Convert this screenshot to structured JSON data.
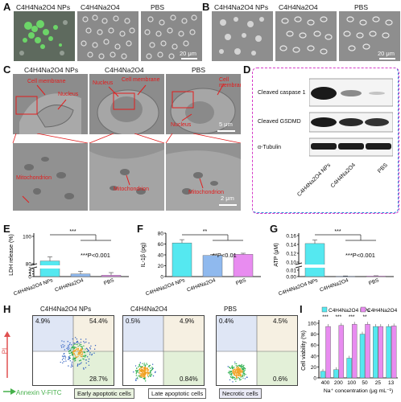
{
  "panel_labels": {
    "A": "A",
    "B": "B",
    "C": "C",
    "D": "D",
    "E": "E",
    "F": "F",
    "G": "G",
    "H": "H",
    "I": "I"
  },
  "micro_titles": {
    "A": [
      "C4H4Na2O4 NPs",
      "C4H4Na2O4",
      "PBS"
    ],
    "B": [
      "C4H4Na2O4 NPs",
      "C4H4Na2O4",
      "PBS"
    ]
  },
  "scale": {
    "A": "20 μm",
    "B": "20 μm",
    "C_top": "5 μm",
    "C_bottom": "2 μm"
  },
  "tem": {
    "titles": [
      "C4H4Na2O4 NPs",
      "C4H4Na2O4",
      "PBS"
    ],
    "labels_top": [
      [
        "Cell membrane",
        "Nucleus"
      ],
      [
        "Nucleus",
        "Cell membrane"
      ],
      [
        "Cell membrane",
        "Nucleus"
      ]
    ],
    "labels_bottom": [
      "Mitochondrion",
      "Mitochondrion",
      "Mitochondrion"
    ]
  },
  "western": {
    "rows": [
      "Cleaved caspase 1",
      "Cleaved GSDMD",
      "α-Tubulin"
    ],
    "lanes": [
      "C4H4Na2O4 NPs",
      "C4H4Na2O4",
      "PBS"
    ],
    "colors": {
      "frame": "#d63ac9",
      "frame2": "#2b88d8"
    }
  },
  "colors": {
    "cyan": "#55e8f0",
    "blue": "#8fb9ee",
    "magenta": "#e88cf0",
    "dark": "#222222"
  },
  "chart_data": [
    {
      "panel": "E",
      "type": "bar",
      "ylabel": "LDH release (%)",
      "categories": [
        "C4H4Na2O4 NPs",
        "C4H4Na2O4",
        "PBS"
      ],
      "values": [
        82,
        1,
        0.5
      ],
      "errors": [
        3,
        1,
        1
      ],
      "yticks": [
        0,
        1,
        2,
        3,
        80,
        100
      ],
      "significance": "***",
      "annotation": "***P<0.001"
    },
    {
      "panel": "F",
      "type": "bar",
      "ylabel": "IL-1β (pg)",
      "categories": [
        "C4H4Na2O4 NPs",
        "C4H4Na2O4",
        "PBS"
      ],
      "values": [
        62,
        39,
        41
      ],
      "errors": [
        6,
        2,
        2
      ],
      "yticks": [
        0,
        20,
        40,
        60,
        80
      ],
      "significance": "**",
      "annotation": "**P<0.01"
    },
    {
      "panel": "G",
      "type": "bar",
      "ylabel": "ATP (μM)",
      "categories": [
        "C4H4Na2O4 NPs",
        "C4H4Na2O4",
        "PBS"
      ],
      "values": [
        0.142,
        0.0005,
        0.0008
      ],
      "errors": [
        0.008,
        0.0005,
        0.0005
      ],
      "yticks": [
        "0.00",
        "0.01",
        "0.10",
        "0.12",
        "0.14",
        "0.16"
      ],
      "significance": "***",
      "annotation": "***P<0.001"
    },
    {
      "panel": "I",
      "type": "bar",
      "ylabel": "Cell viability (%)",
      "xlabel": "Na⁺ concentration (μg mL⁻¹)",
      "categories": [
        "400",
        "200",
        "100",
        "50",
        "25",
        "13"
      ],
      "series": [
        {
          "name": "C4H4Na2O4 NPs",
          "values": [
            12,
            15,
            36,
            80,
            94,
            94
          ]
        },
        {
          "name": "C4H4Na2O4",
          "values": [
            94,
            96,
            98,
            98,
            94,
            95
          ]
        }
      ],
      "yticks": [
        0,
        20,
        40,
        60,
        80,
        100
      ],
      "significance": [
        "***",
        "***",
        "***",
        "**",
        "",
        ""
      ]
    }
  ],
  "flow": {
    "titles": [
      "C4H4Na2O4 NPs",
      "C4H4Na2O4",
      "PBS"
    ],
    "quadrants": [
      {
        "ul": "4.9%",
        "ur": "54.4%",
        "lr": "28.7%"
      },
      {
        "ul": "0.5%",
        "ur": "4.9%",
        "lr": "0.84%"
      },
      {
        "ul": "0.4%",
        "ur": "4.5%",
        "lr": "0.6%"
      }
    ],
    "yaxis": "PI",
    "xaxis": "Annexin V-FITC",
    "legend": [
      "Early apoptotic cells",
      "Late apoptotic cells",
      "Necrotic cells"
    ]
  }
}
